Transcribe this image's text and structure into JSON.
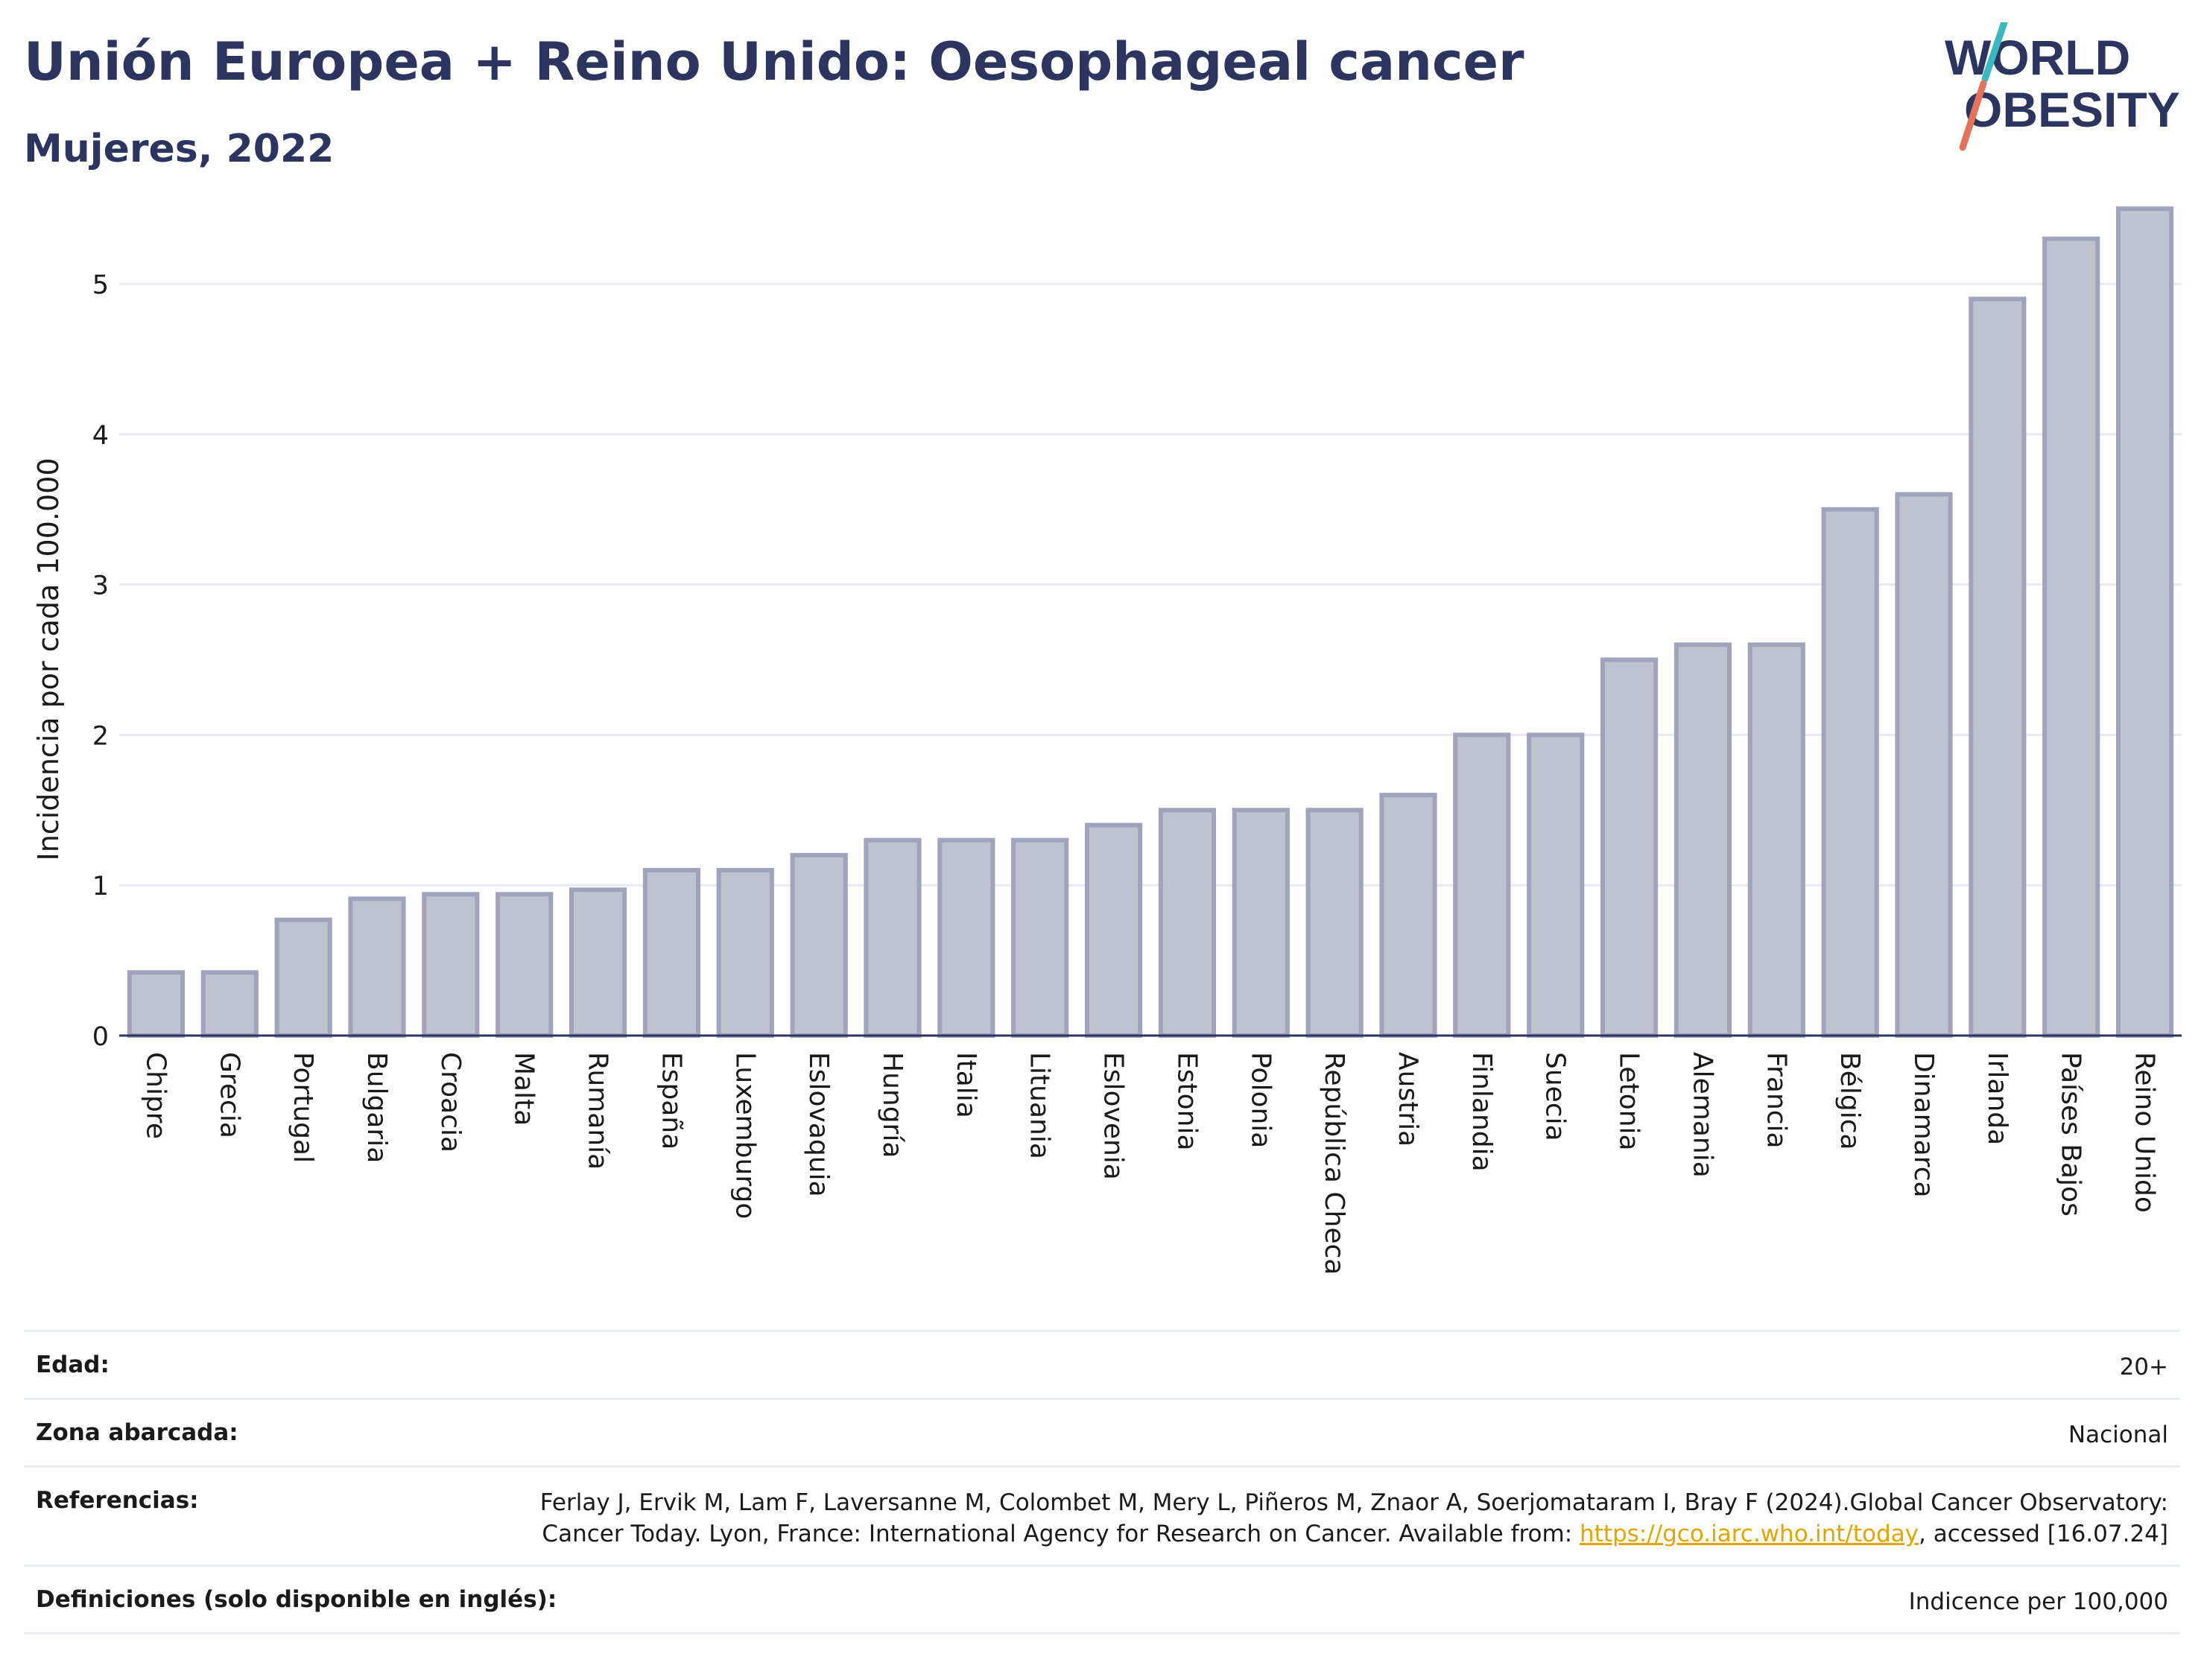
{
  "header": {
    "title": "Unión Europea + Reino Unido: Oesophageal cancer",
    "subtitle": "Mujeres, 2022"
  },
  "logo": {
    "line1": "WORLD",
    "line2": "OBESITY",
    "accent_teal": "#3bb8bf",
    "accent_coral": "#e5735c",
    "text_color": "#2b3560"
  },
  "chart_data": {
    "type": "bar",
    "title": "Unión Europea + Reino Unido: Oesophageal cancer",
    "subtitle": "Mujeres, 2022",
    "ylabel": "Incidencia por cada 100.000",
    "xlabel": "",
    "ylim": [
      0,
      5.6
    ],
    "yticks": [
      0,
      1,
      2,
      3,
      4,
      5
    ],
    "grid": true,
    "bar_fill": "#bfc2cf",
    "bar_stroke": "#9fa3bc",
    "categories": [
      "Chipre",
      "Grecia",
      "Portugal",
      "Bulgaria",
      "Croacia",
      "Malta",
      "Rumanía",
      "España",
      "Luxemburgo",
      "Eslovaquia",
      "Hungría",
      "Italia",
      "Lituania",
      "Eslovenia",
      "Estonia",
      "Polonia",
      "República Checa",
      "Austria",
      "Finlandia",
      "Suecia",
      "Letonia",
      "Alemania",
      "Francia",
      "Bélgica",
      "Dinamarca",
      "Irlanda",
      "Países Bajos",
      "Reino Unido"
    ],
    "values": [
      0.42,
      0.42,
      0.77,
      0.91,
      0.94,
      0.94,
      0.97,
      1.1,
      1.1,
      1.2,
      1.3,
      1.3,
      1.3,
      1.4,
      1.5,
      1.5,
      1.5,
      1.6,
      2.0,
      2.0,
      2.5,
      2.6,
      2.6,
      3.5,
      3.6,
      4.9,
      5.3,
      5.5
    ]
  },
  "meta": {
    "rows": [
      {
        "label": "Edad:",
        "value": "20+"
      },
      {
        "label": "Zona abarcada:",
        "value": "Nacional"
      },
      {
        "label": "Referencias:",
        "value_pre": "Ferlay J, Ervik M, Lam F, Laversanne M, Colombet M, Mery L, Piñeros M, Znaor A, Soerjomataram I, Bray F (2024).Global Cancer Observatory: Cancer Today. Lyon, France: International Agency for Research on Cancer. Available from: ",
        "link": "https://gco.iarc.who.int/today",
        "value_post": ", accessed [16.07.24]"
      },
      {
        "label": "Definiciones (solo disponible en inglés):",
        "value": "Indicence per 100,000"
      }
    ]
  }
}
